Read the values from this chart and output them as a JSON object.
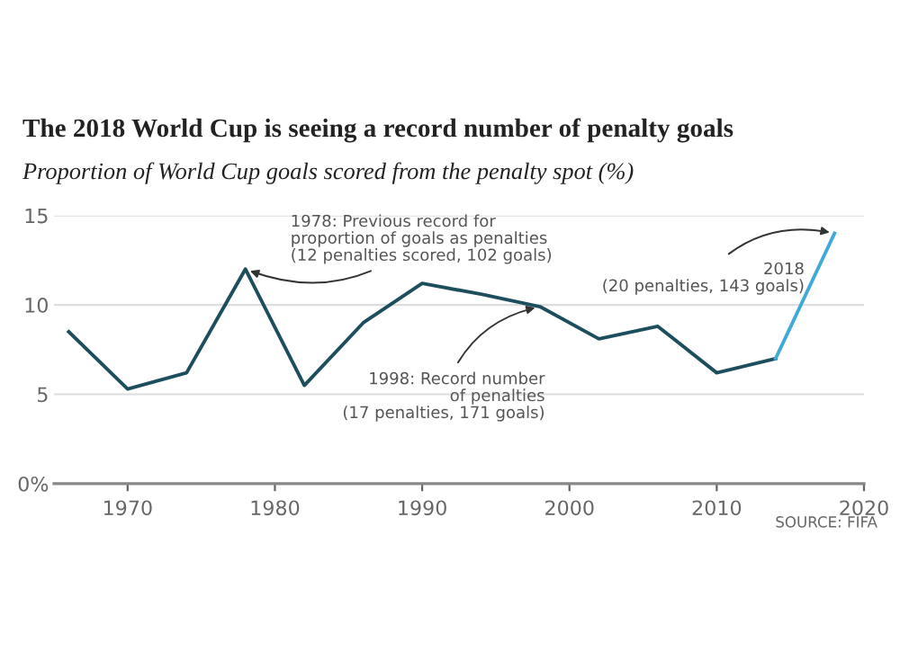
{
  "chart_data": {
    "type": "line",
    "title": "The 2018 World Cup is seeing a record number of penalty goals",
    "subtitle": "Proportion of World Cup goals scored from the penalty spot (%)",
    "series": [
      {
        "color": "#1d4e5e",
        "x": [
          1966,
          1970,
          1974,
          1978,
          1982,
          1986,
          1990,
          1994,
          1998,
          2002,
          2006,
          2010,
          2014
        ],
        "values": [
          8.5,
          5.3,
          6.2,
          12.0,
          5.5,
          9.0,
          11.2,
          10.6,
          9.9,
          8.1,
          8.8,
          6.2,
          7.0
        ]
      },
      {
        "color": "#3fa9d8",
        "x": [
          2014,
          2018
        ],
        "values": [
          7.0,
          14.0
        ]
      }
    ],
    "xlim": [
      1965,
      2020
    ],
    "xticks": [
      1970,
      1980,
      1990,
      2000,
      2010,
      2020
    ],
    "ylim": [
      0,
      15
    ],
    "yticks": [
      {
        "value": 0,
        "label": "0%"
      },
      5,
      10,
      15
    ],
    "grid": "y",
    "marker": "none",
    "line_style": "solid",
    "annotations": [
      {
        "text": "1978: Previous record for\nproportion of goals as penalties\n(12 penalties scored, 102 goals)",
        "x": 1978,
        "y": 12.0
      },
      {
        "text": "1998: Record number\nof penalties\n(17 penalties, 171 goals)",
        "x": 1998,
        "y": 9.9
      },
      {
        "text": "2018\n(20 penalties, 143 goals)",
        "x": 2018,
        "y": 14.0
      },
      "SOURCE: FIFA"
    ]
  }
}
